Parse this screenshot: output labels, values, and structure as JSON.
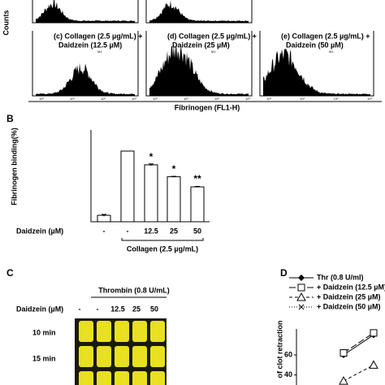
{
  "panel_a": {
    "y_label": "Counts",
    "x_label": "Fibrinogen (FL1-H)",
    "axis_ticks": [
      "10⁰",
      "10¹",
      "10²",
      "10³"
    ],
    "gate_label": "M1",
    "panels": [
      {
        "lines": [
          "(c) Collagen (2.5 µg/mL) +",
          "Daidzein (12.5 µM)"
        ]
      },
      {
        "lines": [
          "(d) Collagen (2.5 µg/mL) +",
          "Daidzein (25 µM)"
        ]
      },
      {
        "lines": [
          "(e) Collagen (2.5 µg/mL) +",
          "Daidzein (50 µM)"
        ]
      }
    ]
  },
  "panel_c": {
    "letter": "C",
    "treatment": "Thrombin (0.8 U/mL)",
    "row_label": "Daidzein (µM)",
    "lanes": [
      "-",
      "-",
      "12.5",
      "25",
      "50"
    ],
    "times": [
      "10 min",
      "15 min"
    ]
  },
  "chart_data": [
    {
      "type": "bar",
      "letter": "B",
      "y_label": "Fibrinogen binding(%)",
      "x_label": "Daidzein (µM)",
      "group_label": "Collagen (2.5 µg/mL)",
      "categories": [
        "-",
        "-",
        "12.5",
        "25",
        "50"
      ],
      "values": [
        7,
        77,
        62,
        49,
        38
      ],
      "errors": [
        1,
        0,
        1,
        0.5,
        0.5
      ],
      "annotations": [
        null,
        null,
        "*",
        "*",
        "**"
      ],
      "color": "#ffffff",
      "ylim": [
        0,
        100
      ]
    },
    {
      "type": "line",
      "letter": "D",
      "y_label": "of clot retraction",
      "categories": [
        null,
        null
      ],
      "ylim": [
        30,
        110
      ],
      "yticks": [
        40,
        60
      ],
      "series": [
        {
          "name": "Thr (0.8 U/ml)",
          "color": "#000000",
          "values": [
            60,
            80
          ]
        },
        {
          "name": "+ Daidzein (12.5 µM)",
          "color": "#000000",
          "values": [
            62,
            82
          ]
        },
        {
          "name": "+ Daidzein (25 µM)",
          "color": "#000000",
          "values": [
            34,
            50
          ]
        },
        {
          "name": "+ Daidzein (50 µM)",
          "color": "#000000",
          "values": [
            null,
            null
          ]
        }
      ]
    }
  ]
}
